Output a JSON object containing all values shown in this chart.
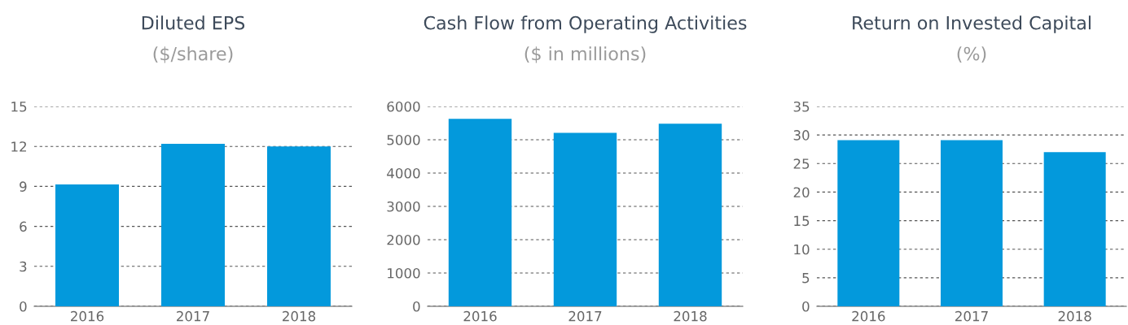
{
  "chart_data": [
    {
      "type": "bar",
      "title": "Diluted EPS",
      "subtitle": "($/share)",
      "categories": [
        "2016",
        "2017",
        "2018"
      ],
      "values": [
        9.15,
        12.2,
        12.0
      ],
      "color": "#0399dc",
      "ylim": [
        0,
        15
      ],
      "yticks": [
        0,
        3,
        6,
        9,
        12,
        15
      ],
      "grid": "y"
    },
    {
      "type": "bar",
      "title": "Cash Flow from Operating Activities",
      "subtitle": "($ in millions)",
      "categories": [
        "2016",
        "2017",
        "2018"
      ],
      "values": [
        5630,
        5210,
        5480
      ],
      "color": "#0399dc",
      "ylim": [
        0,
        6000
      ],
      "yticks": [
        0,
        1000,
        2000,
        3000,
        4000,
        5000,
        6000
      ],
      "grid": "y"
    },
    {
      "type": "bar",
      "title": "Return on Invested Capital",
      "subtitle": "(%)",
      "categories": [
        "2016",
        "2017",
        "2018"
      ],
      "values": [
        29.1,
        29.1,
        27.0
      ],
      "color": "#0399dc",
      "ylim": [
        0,
        35
      ],
      "yticks": [
        0,
        5,
        10,
        15,
        20,
        25,
        30,
        35
      ],
      "grid": "y"
    }
  ]
}
